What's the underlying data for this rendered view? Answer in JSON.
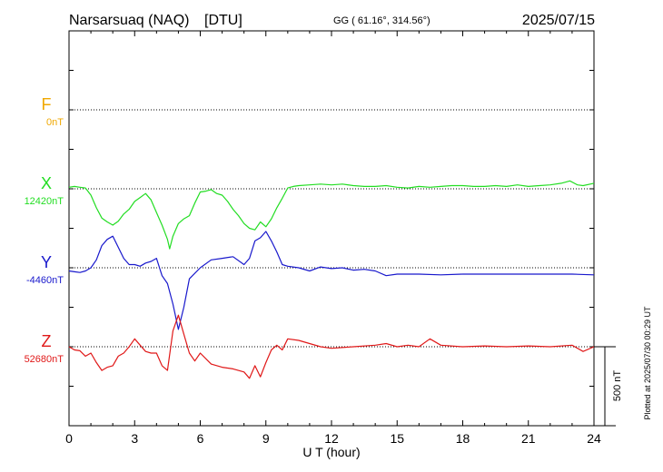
{
  "header": {
    "station": "Narsarsuaq (NAQ)",
    "network": "[DTU]",
    "coords": "GG ( 61.16°, 314.56°)",
    "date": "2025/07/15"
  },
  "footer_note": "Plotted at 2025/07/30 00:29 UT",
  "colors": {
    "F": "#f0a800",
    "X": "#22dd22",
    "Y": "#1818cc",
    "Z": "#e01818",
    "axis": "#000000"
  },
  "chart_data": {
    "type": "line",
    "xlabel": "U T (hour)",
    "xlim": [
      0,
      24
    ],
    "xticks": [
      0,
      3,
      6,
      9,
      12,
      15,
      18,
      21,
      24
    ],
    "scale_bar_label": "500 nT",
    "scale_bar_nT": 500,
    "channels": [
      {
        "name": "F",
        "baseline_label": "0nT"
      },
      {
        "name": "X",
        "baseline_label": "12420nT"
      },
      {
        "name": "Y",
        "baseline_label": "-4460nT"
      },
      {
        "name": "Z",
        "baseline_label": "52680nT"
      }
    ],
    "series": [
      {
        "name": "X",
        "x": [
          0,
          0.25,
          0.5,
          0.75,
          1.0,
          1.25,
          1.5,
          1.75,
          2.0,
          2.25,
          2.5,
          2.75,
          3.0,
          3.25,
          3.5,
          3.75,
          4.0,
          4.25,
          4.5,
          4.6,
          4.75,
          5.0,
          5.25,
          5.5,
          5.75,
          6.0,
          6.25,
          6.5,
          6.75,
          7.0,
          7.25,
          7.5,
          7.75,
          8.0,
          8.25,
          8.5,
          8.75,
          9.0,
          9.25,
          9.5,
          9.75,
          10.0,
          10.25,
          10.5,
          11,
          11.5,
          12,
          12.5,
          13,
          13.5,
          14,
          14.5,
          15,
          15.5,
          16,
          16.5,
          17,
          17.5,
          18,
          18.5,
          19,
          19.5,
          20,
          20.5,
          21,
          21.5,
          22,
          22.5,
          22.9,
          23.25,
          23.5,
          24
        ],
        "values": [
          10,
          15,
          10,
          5,
          -40,
          -120,
          -185,
          -210,
          -230,
          -205,
          -160,
          -130,
          -80,
          -55,
          -30,
          -70,
          -150,
          -230,
          -320,
          -380,
          -300,
          -220,
          -190,
          -170,
          -90,
          -20,
          -15,
          -5,
          -30,
          -40,
          -80,
          -130,
          -170,
          -220,
          -250,
          -260,
          -210,
          -240,
          -190,
          -120,
          -60,
          5,
          15,
          20,
          25,
          30,
          25,
          30,
          20,
          15,
          15,
          20,
          10,
          5,
          15,
          10,
          15,
          20,
          20,
          15,
          15,
          20,
          15,
          25,
          15,
          20,
          25,
          35,
          50,
          25,
          20,
          35
        ]
      },
      {
        "name": "Y",
        "x": [
          0,
          0.25,
          0.5,
          0.75,
          1.0,
          1.25,
          1.5,
          1.75,
          2.0,
          2.25,
          2.5,
          2.75,
          3.0,
          3.25,
          3.5,
          3.75,
          4.0,
          4.25,
          4.5,
          4.75,
          5.0,
          5.25,
          5.5,
          6.0,
          6.5,
          7.0,
          7.5,
          8.0,
          8.25,
          8.5,
          8.75,
          9.0,
          9.25,
          9.5,
          9.75,
          10,
          10.5,
          11,
          11.5,
          12,
          12.5,
          13,
          13.5,
          14,
          14.5,
          15,
          15.5,
          16,
          17,
          18,
          19,
          20,
          21,
          22,
          23,
          24
        ],
        "values": [
          -20,
          -25,
          -30,
          -20,
          0,
          50,
          140,
          180,
          200,
          130,
          60,
          20,
          20,
          10,
          30,
          40,
          60,
          -50,
          -100,
          -230,
          -390,
          -250,
          -70,
          0,
          50,
          60,
          70,
          20,
          60,
          170,
          190,
          230,
          170,
          100,
          20,
          10,
          0,
          -20,
          5,
          -5,
          0,
          -15,
          -10,
          -20,
          -50,
          -40,
          -40,
          -40,
          -45,
          -40,
          -40,
          -40,
          -40,
          -40,
          -40,
          -45
        ]
      },
      {
        "name": "Z",
        "x": [
          0,
          0.25,
          0.5,
          0.75,
          1.0,
          1.25,
          1.5,
          1.75,
          2.0,
          2.25,
          2.5,
          2.75,
          3.0,
          3.25,
          3.5,
          3.75,
          4.0,
          4.25,
          4.5,
          4.75,
          5.0,
          5.25,
          5.5,
          5.75,
          6.0,
          6.5,
          7.0,
          7.5,
          8.0,
          8.25,
          8.5,
          8.75,
          9.0,
          9.25,
          9.5,
          9.75,
          10,
          10.5,
          11,
          11.5,
          12,
          13,
          14,
          14.5,
          15,
          15.5,
          16,
          16.5,
          17,
          18,
          19,
          20,
          21,
          22,
          23,
          23.5,
          24
        ],
        "values": [
          0,
          -20,
          -25,
          -60,
          -40,
          -100,
          -150,
          -130,
          -120,
          -60,
          -40,
          0,
          50,
          10,
          -30,
          -40,
          -40,
          -120,
          -150,
          100,
          200,
          80,
          -40,
          -90,
          -40,
          -110,
          -130,
          -140,
          -160,
          -200,
          -120,
          -190,
          -100,
          -20,
          10,
          -20,
          50,
          40,
          20,
          0,
          -10,
          0,
          10,
          20,
          0,
          10,
          0,
          50,
          10,
          0,
          5,
          0,
          5,
          0,
          10,
          -30,
          0
        ]
      }
    ]
  }
}
